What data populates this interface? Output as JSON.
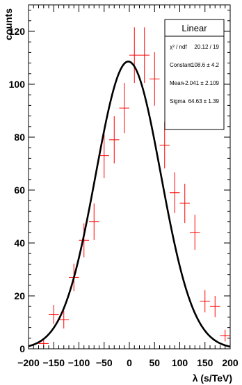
{
  "chart_data": {
    "type": "scatter",
    "xlabel": "λ (s/TeV)",
    "ylabel": "counts",
    "xlim": [
      -200,
      200
    ],
    "ylim": [
      0,
      130
    ],
    "x_ticks": [
      -200,
      -150,
      -100,
      -50,
      0,
      50,
      100,
      150,
      200
    ],
    "x_tick_labels": [
      "−200",
      "−150",
      "−100",
      "−50",
      "0",
      "50",
      "100",
      "150",
      "200"
    ],
    "y_ticks": [
      0,
      20,
      40,
      60,
      80,
      100,
      120
    ],
    "grid": false,
    "x_bin_half_width": 10,
    "histogram": {
      "color": "#ff0000",
      "points": [
        {
          "x": -190,
          "y": 0,
          "err": 0
        },
        {
          "x": -170,
          "y": 2,
          "err": 1.4
        },
        {
          "x": -150,
          "y": 13,
          "err": 3.6
        },
        {
          "x": -130,
          "y": 11,
          "err": 3.3
        },
        {
          "x": -110,
          "y": 27,
          "err": 5.2
        },
        {
          "x": -90,
          "y": 41,
          "err": 6.4
        },
        {
          "x": -70,
          "y": 48,
          "err": 6.9
        },
        {
          "x": -50,
          "y": 73,
          "err": 8.5
        },
        {
          "x": -30,
          "y": 79,
          "err": 8.9
        },
        {
          "x": -10,
          "y": 91,
          "err": 9.5
        },
        {
          "x": 10,
          "y": 111,
          "err": 10.5
        },
        {
          "x": 30,
          "y": 111,
          "err": 10.5
        },
        {
          "x": 50,
          "y": 102,
          "err": 10.1
        },
        {
          "x": 70,
          "y": 77,
          "err": 8.8
        },
        {
          "x": 90,
          "y": 59,
          "err": 7.7
        },
        {
          "x": 110,
          "y": 55,
          "err": 7.4
        },
        {
          "x": 130,
          "y": 44,
          "err": 6.6
        },
        {
          "x": 150,
          "y": 18,
          "err": 4.2
        },
        {
          "x": 170,
          "y": 16,
          "err": 4.0
        },
        {
          "x": 190,
          "y": 5,
          "err": 2.2
        }
      ]
    },
    "fit": {
      "function": "gaussian",
      "color": "#000000",
      "constant": 108.6,
      "mean": -2.041,
      "sigma": 64.63
    },
    "stats_box": {
      "title": "Linear",
      "rows": [
        {
          "label": "χ² / ndf",
          "value": "20.12 / 19"
        },
        {
          "label": "Constant",
          "value": "108.6 ± 4.2"
        },
        {
          "label": "Mean",
          "value": "−2.041 ± 2.109"
        },
        {
          "label": "Sigma",
          "value": "64.63 ± 1.39"
        }
      ]
    }
  }
}
